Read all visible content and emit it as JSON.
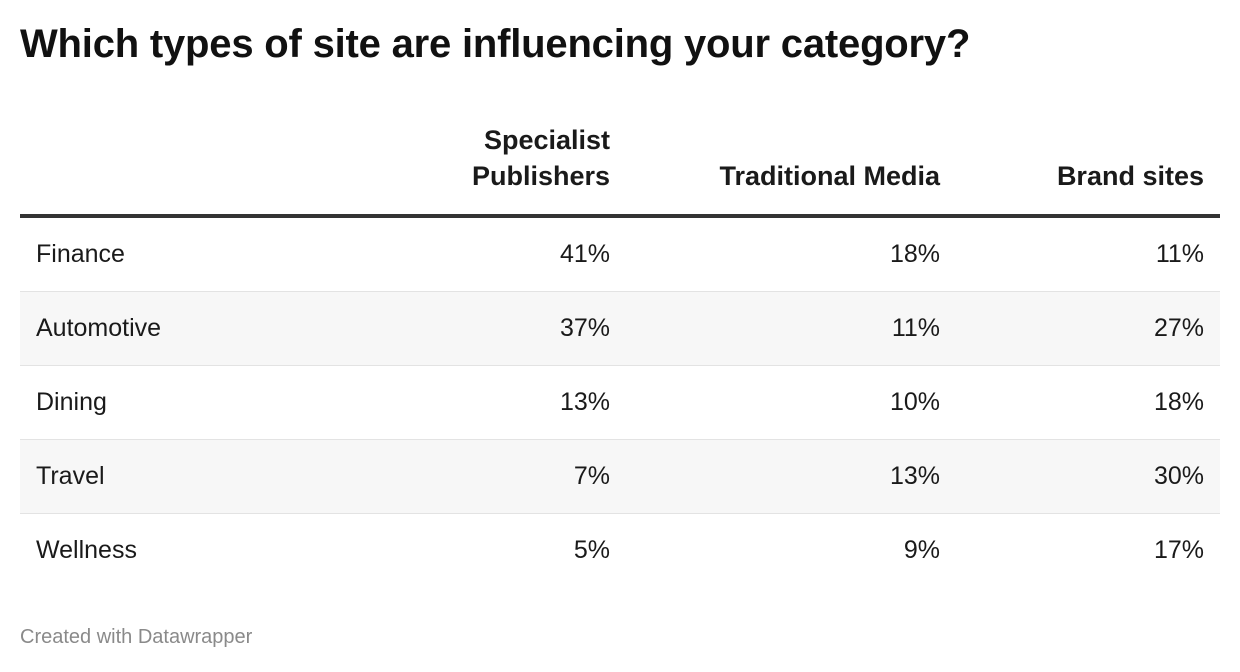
{
  "title": "Which types of site are influencing your category?",
  "footer": "Created with Datawrapper",
  "chart_data": {
    "type": "table",
    "title": "Which types of site are influencing your category?",
    "columns": [
      "Specialist Publishers",
      "Traditional Media",
      "Brand sites"
    ],
    "column_header_lines": [
      [
        "Specialist",
        "Publishers"
      ],
      [
        "Traditional Media"
      ],
      [
        "Brand sites"
      ]
    ],
    "rows": [
      {
        "label": "Finance",
        "values": [
          "41%",
          "18%",
          "11%"
        ]
      },
      {
        "label": "Automotive",
        "values": [
          "37%",
          "11%",
          "27%"
        ]
      },
      {
        "label": "Dining",
        "values": [
          "13%",
          "10%",
          "18%"
        ]
      },
      {
        "label": "Travel",
        "values": [
          "7%",
          "13%",
          "30%"
        ]
      },
      {
        "label": "Wellness",
        "values": [
          "5%",
          "9%",
          "17%"
        ]
      }
    ]
  },
  "colors": {
    "header_rule": "#333333",
    "row_alt_background": "#f7f7f7",
    "row_divider": "#e3e3e3",
    "footer_text": "#8a8a8a"
  }
}
